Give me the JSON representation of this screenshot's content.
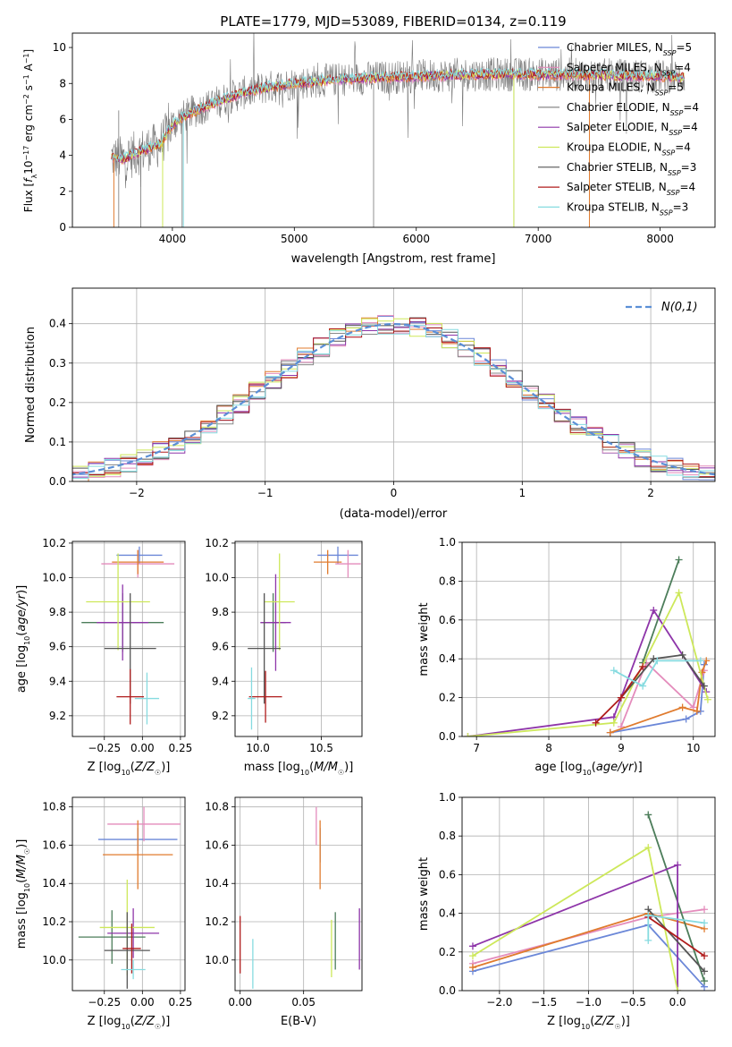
{
  "figure_title": "PLATE=1779, MJD=53089, FIBERID=0134, z=0.119",
  "colors": {
    "chabrier_miles": "#6b87d8",
    "salpeter_miles": "#e48cbc",
    "kroupa_miles": "#e07b2e",
    "chabrier_elodie": "#888888",
    "salpeter_elodie": "#8e35a9",
    "kroupa_elodie": "#cde85a",
    "chabrier_stelib": "#555555",
    "salpeter_stelib": "#b01c1c",
    "kroupa_stelib": "#86dbe0",
    "dark_green": "#4c7d5a"
  },
  "chart_data": [
    {
      "id": "spectrum",
      "type": "line",
      "xlabel": "wavelength [Angstrom, rest frame]",
      "ylabel": "Flux [f_λ10^-17 erg cm^-2 s^-1 A^-1]",
      "xlim": [
        3180,
        8450
      ],
      "ylim": [
        0,
        10.8
      ],
      "xticks": [
        4000,
        5000,
        6000,
        7000,
        8000
      ],
      "yticks": [
        0,
        2,
        4,
        6,
        8,
        10
      ],
      "grid": false,
      "legend_position": "right",
      "legend": [
        {
          "label": "Chabrier MILES, N_SSP=5",
          "color": "#6b87d8"
        },
        {
          "label": "Salpeter MILES, N_SSP=4",
          "color": "#e48cbc"
        },
        {
          "label": "Kroupa MILES, N_SSP=5",
          "color": "#e07b2e"
        },
        {
          "label": "Chabrier ELODIE, N_SSP=4",
          "color": "#888888"
        },
        {
          "label": "Salpeter ELODIE, N_SSP=4",
          "color": "#8e35a9"
        },
        {
          "label": "Kroupa ELODIE, N_SSP=4",
          "color": "#cde85a"
        },
        {
          "label": "Chabrier STELIB, N_SSP=3",
          "color": "#555555"
        },
        {
          "label": "Salpeter STELIB, N_SSP=4",
          "color": "#b01c1c"
        },
        {
          "label": "Kroupa STELIB, N_SSP=3",
          "color": "#86dbe0"
        }
      ],
      "continuum": {
        "x": [
          3500,
          3600,
          3700,
          3800,
          3900,
          4000,
          4100,
          4300,
          4500,
          4700,
          5000,
          5300,
          5600,
          6000,
          6400,
          6800,
          7200,
          7600,
          8000,
          8200
        ],
        "y": [
          3.9,
          3.8,
          4.1,
          4.4,
          4.6,
          5.7,
          6.2,
          6.8,
          7.3,
          7.7,
          8.0,
          8.2,
          8.3,
          8.4,
          8.5,
          8.5,
          8.5,
          8.45,
          8.4,
          8.35
        ]
      }
    },
    {
      "id": "residual_histogram",
      "type": "line",
      "xlabel": "(data-model)/error",
      "ylabel": "Normed distribution",
      "xlim": [
        -2.5,
        2.5
      ],
      "ylim": [
        0,
        0.49
      ],
      "xticks": [
        -2,
        -1,
        0,
        1,
        2
      ],
      "yticks": [
        0.0,
        0.1,
        0.2,
        0.3,
        0.4
      ],
      "grid": true,
      "legend_position": "top-right",
      "legend": [
        {
          "label": "N(0,1)",
          "color": "#5b8fd6",
          "style": "dashed"
        }
      ]
    },
    {
      "id": "age_vs_Z",
      "type": "scatter",
      "xlabel": "Z [log10(Z/Z☉)]",
      "ylabel": "age [log10(age/yr)]",
      "xlim": [
        -0.46,
        0.28
      ],
      "ylim": [
        9.08,
        10.21
      ],
      "xticks": [
        -0.25,
        0.0,
        0.25
      ],
      "yticks": [
        9.2,
        9.4,
        9.6,
        9.8,
        10.0,
        10.2
      ],
      "grid": true,
      "error_bars": [
        {
          "x": -0.02,
          "y": 10.13,
          "xerr": 0.15,
          "yerr": 0.05,
          "color": "#6b87d8"
        },
        {
          "x": -0.03,
          "y": 10.08,
          "xerr": 0.24,
          "yerr": 0.08,
          "color": "#e48cbc"
        },
        {
          "x": -0.03,
          "y": 10.09,
          "xerr": 0.17,
          "yerr": 0.07,
          "color": "#e07b2e"
        },
        {
          "x": -0.13,
          "y": 9.74,
          "xerr": 0.27,
          "yerr": 0.17,
          "color": "#4c7d5a"
        },
        {
          "x": -0.13,
          "y": 9.74,
          "xerr": 0.17,
          "yerr": 0.22,
          "color": "#8e35a9"
        },
        {
          "x": -0.16,
          "y": 9.86,
          "xerr": 0.21,
          "yerr": 0.28,
          "color": "#cde85a"
        },
        {
          "x": -0.08,
          "y": 9.59,
          "xerr": 0.17,
          "yerr": 0.32,
          "color": "#555555"
        },
        {
          "x": -0.08,
          "y": 9.31,
          "xerr": 0.09,
          "yerr": 0.16,
          "color": "#b01c1c"
        },
        {
          "x": 0.03,
          "y": 9.3,
          "xerr": 0.08,
          "yerr": 0.15,
          "color": "#86dbe0"
        }
      ]
    },
    {
      "id": "age_vs_mass",
      "type": "scatter",
      "xlabel": "mass [log10(M/M☉)]",
      "ylabel": "",
      "xlim": [
        9.82,
        10.82
      ],
      "ylim": [
        9.08,
        10.21
      ],
      "xticks": [
        10.0,
        10.5
      ],
      "yticks": [
        9.2,
        9.4,
        9.6,
        9.8,
        10.0,
        10.2
      ],
      "grid": true,
      "error_bars": [
        {
          "x": 10.63,
          "y": 10.13,
          "xerr": 0.16,
          "yerr": 0.05,
          "color": "#6b87d8"
        },
        {
          "x": 10.71,
          "y": 10.08,
          "xerr": 0.1,
          "yerr": 0.08,
          "color": "#e48cbc"
        },
        {
          "x": 10.55,
          "y": 10.09,
          "xerr": 0.11,
          "yerr": 0.07,
          "color": "#e07b2e"
        },
        {
          "x": 10.12,
          "y": 9.74,
          "xerr": 0.1,
          "yerr": 0.17,
          "color": "#4c7d5a"
        },
        {
          "x": 10.14,
          "y": 9.74,
          "xerr": 0.12,
          "yerr": 0.28,
          "color": "#8e35a9"
        },
        {
          "x": 10.17,
          "y": 9.86,
          "xerr": 0.12,
          "yerr": 0.28,
          "color": "#cde85a"
        },
        {
          "x": 10.05,
          "y": 9.59,
          "xerr": 0.13,
          "yerr": 0.32,
          "color": "#555555"
        },
        {
          "x": 10.06,
          "y": 9.31,
          "xerr": 0.13,
          "yerr": 0.15,
          "color": "#b01c1c"
        },
        {
          "x": 9.95,
          "y": 9.3,
          "xerr": 0.03,
          "yerr": 0.18,
          "color": "#86dbe0"
        }
      ]
    },
    {
      "id": "weight_vs_age",
      "type": "line",
      "xlabel": "age [log10(age/yr)]",
      "ylabel": "mass weight",
      "xlim": [
        6.8,
        10.3
      ],
      "ylim": [
        0,
        1.0
      ],
      "xticks": [
        7,
        8,
        9,
        10
      ],
      "yticks": [
        0.0,
        0.2,
        0.4,
        0.6,
        0.8,
        1.0
      ],
      "grid": true,
      "series": [
        {
          "color": "#6b87d8",
          "x": [
            8.85,
            9.9,
            10.1,
            10.15
          ],
          "y": [
            0.02,
            0.09,
            0.13,
            0.37
          ]
        },
        {
          "color": "#e48cbc",
          "x": [
            9.0,
            9.35,
            10.0,
            10.15
          ],
          "y": [
            0.05,
            0.38,
            0.15,
            0.34
          ]
        },
        {
          "color": "#e07b2e",
          "x": [
            8.85,
            9.85,
            10.05,
            10.12,
            10.18
          ],
          "y": [
            0.02,
            0.15,
            0.13,
            0.33,
            0.39
          ]
        },
        {
          "color": "#4c7d5a",
          "x": [
            9.3,
            9.8
          ],
          "y": [
            0.38,
            0.91
          ]
        },
        {
          "color": "#8e35a9",
          "x": [
            6.88,
            8.9,
            9.45,
            10.18
          ],
          "y": [
            0.0,
            0.1,
            0.65,
            0.23
          ]
        },
        {
          "color": "#cde85a",
          "x": [
            6.88,
            8.9,
            9.8,
            10.2
          ],
          "y": [
            0.0,
            0.07,
            0.74,
            0.19
          ]
        },
        {
          "color": "#555555",
          "x": [
            9.0,
            9.45,
            9.85,
            10.15
          ],
          "y": [
            0.2,
            0.4,
            0.42,
            0.26
          ]
        },
        {
          "color": "#b01c1c",
          "x": [
            8.65,
            9.0,
            9.3
          ],
          "y": [
            0.07,
            0.2,
            0.36
          ]
        },
        {
          "color": "#86dbe0",
          "x": [
            8.9,
            9.3,
            9.5,
            10.1
          ],
          "y": [
            0.34,
            0.26,
            0.39,
            0.39
          ]
        }
      ]
    },
    {
      "id": "mass_vs_Z",
      "type": "scatter",
      "xlabel": "Z [log10(Z/Z☉)]",
      "ylabel": "mass [log10(M/M☉)]",
      "xlim": [
        -0.46,
        0.28
      ],
      "ylim": [
        9.84,
        10.85
      ],
      "xticks": [
        -0.25,
        0.0,
        0.25
      ],
      "yticks": [
        10.0,
        10.2,
        10.4,
        10.6,
        10.8
      ],
      "grid": true,
      "error_bars": [
        {
          "x": -0.03,
          "y": 10.63,
          "xerr": 0.26,
          "yerr": 0.06,
          "color": "#6b87d8"
        },
        {
          "x": 0.01,
          "y": 10.71,
          "xerr": 0.24,
          "yerr": 0.09,
          "color": "#e48cbc"
        },
        {
          "x": -0.03,
          "y": 10.55,
          "xerr": 0.23,
          "yerr": 0.18,
          "color": "#e07b2e"
        },
        {
          "x": -0.2,
          "y": 10.12,
          "xerr": 0.22,
          "yerr": 0.14,
          "color": "#4c7d5a"
        },
        {
          "x": -0.06,
          "y": 10.14,
          "xerr": 0.17,
          "yerr": 0.13,
          "color": "#8e35a9"
        },
        {
          "x": -0.1,
          "y": 10.17,
          "xerr": 0.18,
          "yerr": 0.25,
          "color": "#cde85a"
        },
        {
          "x": -0.1,
          "y": 10.05,
          "xerr": 0.15,
          "yerr": 0.2,
          "color": "#555555"
        },
        {
          "x": -0.07,
          "y": 10.06,
          "xerr": 0.06,
          "yerr": 0.13,
          "color": "#b01c1c"
        },
        {
          "x": -0.06,
          "y": 9.95,
          "xerr": 0.08,
          "yerr": 0.05,
          "color": "#86dbe0"
        }
      ]
    },
    {
      "id": "mass_vs_EBV",
      "type": "scatter",
      "xlabel": "E(B-V)",
      "ylabel": "",
      "xlim": [
        -0.004,
        0.096
      ],
      "ylim": [
        9.84,
        10.85
      ],
      "xticks": [
        0.0,
        0.05
      ],
      "yticks": [
        10.0,
        10.2,
        10.4,
        10.6,
        10.8
      ],
      "grid": true,
      "error_bars": [
        {
          "x": 0.06,
          "y": 10.7,
          "yerr": 0.1,
          "color": "#e48cbc"
        },
        {
          "x": 0.063,
          "y": 10.6,
          "yerr": 0.09,
          "color": "#888888"
        },
        {
          "x": 0.063,
          "y": 10.55,
          "yerr": 0.18,
          "color": "#e07b2e"
        },
        {
          "x": 0.0,
          "y": 10.08,
          "yerr": 0.15,
          "color": "#b01c1c"
        },
        {
          "x": 0.01,
          "y": 9.98,
          "yerr": 0.13,
          "color": "#86dbe0"
        },
        {
          "x": 0.072,
          "y": 10.06,
          "yerr": 0.15,
          "color": "#cde85a"
        },
        {
          "x": 0.075,
          "y": 10.1,
          "yerr": 0.15,
          "color": "#4c7d5a"
        },
        {
          "x": 0.094,
          "y": 10.11,
          "yerr": 0.16,
          "color": "#8e35a9"
        }
      ]
    },
    {
      "id": "weight_vs_Z",
      "type": "line",
      "xlabel": "Z [log10(Z/Z☉)]",
      "ylabel": "mass weight",
      "xlim": [
        -2.42,
        0.42
      ],
      "ylim": [
        0,
        1.0
      ],
      "xticks": [
        -2.0,
        -1.5,
        -1.0,
        -0.5,
        0.0
      ],
      "yticks": [
        0.0,
        0.2,
        0.4,
        0.6,
        0.8,
        1.0
      ],
      "grid": true,
      "series": [
        {
          "color": "#6b87d8",
          "x": [
            -2.3,
            -0.33,
            0.3
          ],
          "y": [
            0.1,
            0.34,
            0.02
          ]
        },
        {
          "color": "#e48cbc",
          "x": [
            -2.3,
            -0.33,
            0.3
          ],
          "y": [
            0.14,
            0.38,
            0.42
          ]
        },
        {
          "color": "#e07b2e",
          "x": [
            -2.3,
            -0.33,
            0.3
          ],
          "y": [
            0.12,
            0.4,
            0.32
          ]
        },
        {
          "color": "#4c7d5a",
          "x": [
            -0.33,
            0.3
          ],
          "y": [
            0.91,
            0.05
          ]
        },
        {
          "color": "#8e35a9",
          "x": [
            -2.3,
            0.0,
            0.0
          ],
          "y": [
            0.23,
            0.65,
            0.0
          ]
        },
        {
          "color": "#cde85a",
          "x": [
            -2.3,
            -0.33,
            0.0
          ],
          "y": [
            0.18,
            0.74,
            0.0
          ]
        },
        {
          "color": "#555555",
          "x": [
            -0.33,
            0.3
          ],
          "y": [
            0.42,
            0.1
          ]
        },
        {
          "color": "#b01c1c",
          "x": [
            -0.33,
            0.3
          ],
          "y": [
            0.38,
            0.18
          ]
        },
        {
          "color": "#86dbe0",
          "x": [
            -0.33,
            -0.33,
            0.3
          ],
          "y": [
            0.26,
            0.39,
            0.35
          ]
        }
      ]
    }
  ]
}
